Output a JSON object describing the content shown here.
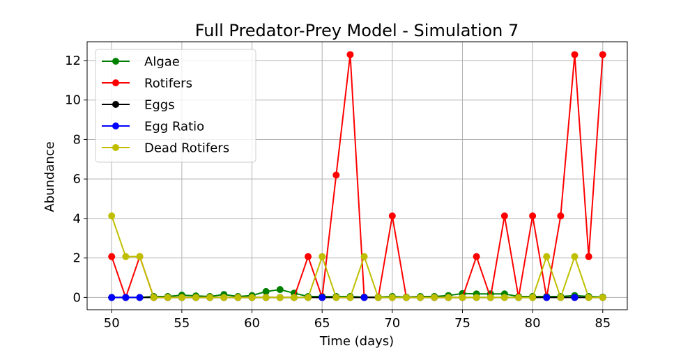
{
  "chart_data": {
    "type": "line",
    "title": "Full Predator-Prey Model - Simulation 7",
    "xlabel": "Time (days)",
    "ylabel": "Abundance",
    "xlim": [
      48.25,
      86.75
    ],
    "ylim": [
      -0.62,
      12.95
    ],
    "xticks": [
      50,
      55,
      60,
      65,
      70,
      75,
      80,
      85
    ],
    "yticks": [
      0,
      2,
      4,
      6,
      8,
      10,
      12
    ],
    "grid": true,
    "legend_position": "top-left",
    "x": [
      50,
      51,
      52,
      53,
      54,
      55,
      56,
      57,
      58,
      59,
      60,
      61,
      62,
      63,
      64,
      65,
      66,
      67,
      68,
      69,
      70,
      71,
      72,
      73,
      74,
      75,
      76,
      77,
      78,
      79,
      80,
      81,
      82,
      83,
      84,
      85
    ],
    "series": [
      {
        "name": "Algae",
        "color": "#008000",
        "values": [
          0,
          0,
          0,
          0.05,
          0.05,
          0.12,
          0.08,
          0.05,
          0.15,
          0.05,
          0.1,
          0.3,
          0.4,
          0.22,
          0.05,
          0.05,
          0.05,
          0.05,
          0.02,
          0.02,
          0.05,
          0.02,
          0.05,
          0.05,
          0.1,
          0.2,
          0.18,
          0.18,
          0.18,
          0.05,
          0.05,
          0.05,
          0.05,
          0.1,
          0.05,
          0.02
        ]
      },
      {
        "name": "Rotifers",
        "color": "#ff0000",
        "values": [
          2.07,
          0,
          2.07,
          0,
          0,
          0,
          0,
          0,
          0,
          0,
          0,
          0,
          0,
          0,
          2.07,
          0,
          6.2,
          12.3,
          0,
          0,
          4.13,
          0,
          0,
          0,
          0,
          0,
          2.07,
          0,
          4.13,
          0,
          4.13,
          0,
          4.13,
          12.3,
          2.07,
          12.3
        ]
      },
      {
        "name": "Eggs",
        "color": "#000000",
        "values": [
          0,
          0,
          0,
          0,
          0,
          0,
          0,
          0,
          0,
          0,
          0,
          0,
          0,
          0,
          0,
          0,
          0,
          0,
          0,
          0,
          0,
          0,
          0,
          0,
          0,
          0,
          0,
          0,
          0,
          0,
          0,
          0,
          0,
          0,
          0,
          0
        ]
      },
      {
        "name": "Egg Ratio",
        "color": "#0000ff",
        "values": [
          0,
          0,
          0,
          null,
          null,
          null,
          null,
          null,
          null,
          null,
          null,
          null,
          null,
          null,
          null,
          0,
          null,
          null,
          0,
          null,
          null,
          null,
          null,
          null,
          null,
          null,
          null,
          null,
          null,
          null,
          null,
          0,
          null,
          0,
          null,
          null
        ]
      },
      {
        "name": "Dead Rotifers",
        "color": "#bfbf00",
        "values": [
          4.13,
          2.07,
          2.07,
          0,
          0,
          0,
          0,
          0,
          0,
          0,
          0,
          0,
          0,
          0,
          0,
          2.07,
          0,
          0,
          2.07,
          0,
          0,
          0,
          0,
          0,
          0,
          0,
          0,
          0,
          0,
          0,
          0,
          2.07,
          0,
          2.07,
          0,
          0
        ]
      }
    ]
  }
}
